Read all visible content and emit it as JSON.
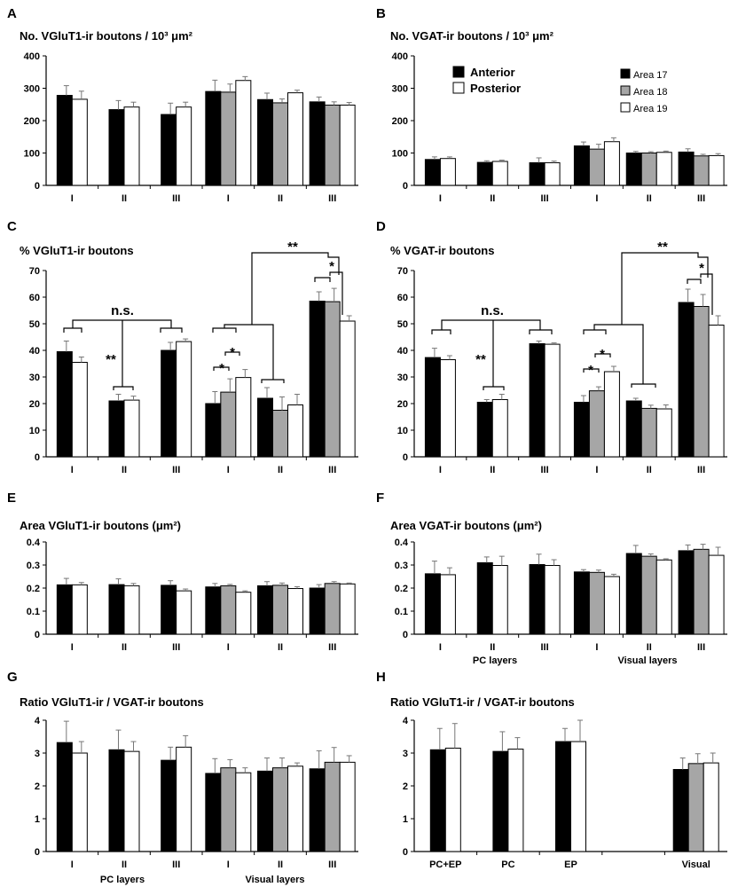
{
  "colors": {
    "anterior": "#000000",
    "posterior": "#ffffff",
    "area17": "#000000",
    "area18": "#a6a6a6",
    "area19": "#ffffff",
    "axis": "#000000"
  },
  "legend": {
    "phase": {
      "anterior": "Anterior",
      "posterior": "Posterior"
    },
    "areas": {
      "area17": "Area 17",
      "area18": "Area 18",
      "area19": "Area 19"
    }
  },
  "group_labels": {
    "pc": "PC layers",
    "visual": "Visual layers"
  },
  "chart_data": [
    {
      "id": "A",
      "letter": "A",
      "type": "bar",
      "title": "No. VGluT1-ir boutons / 10³ μm²",
      "ylim": [
        0,
        400
      ],
      "yticks": [
        "0",
        "100",
        "200",
        "300",
        "400"
      ],
      "categories": [
        "I",
        "II",
        "III",
        "I",
        "II",
        "III"
      ],
      "groups": [
        {
          "series": [
            "Anterior",
            "Posterior"
          ],
          "values": [
            278,
            266
          ],
          "errors": [
            30,
            25
          ]
        },
        {
          "series": [
            "Anterior",
            "Posterior"
          ],
          "values": [
            234,
            242
          ],
          "errors": [
            28,
            15
          ]
        },
        {
          "series": [
            "Anterior",
            "Posterior"
          ],
          "values": [
            219,
            242
          ],
          "errors": [
            35,
            15
          ]
        },
        {
          "series": [
            "Area 17",
            "Area 18",
            "Area 19"
          ],
          "values": [
            290,
            288,
            324
          ],
          "errors": [
            35,
            25,
            12
          ]
        },
        {
          "series": [
            "Area 17",
            "Area 18",
            "Area 19"
          ],
          "values": [
            265,
            255,
            286
          ],
          "errors": [
            20,
            12,
            8
          ]
        },
        {
          "series": [
            "Area 17",
            "Area 18",
            "Area 19"
          ],
          "values": [
            258,
            248,
            248
          ],
          "errors": [
            15,
            10,
            8
          ]
        }
      ]
    },
    {
      "id": "B",
      "letter": "B",
      "type": "bar",
      "title": "No. VGAT-ir boutons / 10³ μm²",
      "ylim": [
        0,
        400
      ],
      "yticks": [
        "0",
        "100",
        "200",
        "300",
        "400"
      ],
      "categories": [
        "I",
        "II",
        "III",
        "I",
        "II",
        "III"
      ],
      "groups": [
        {
          "series": [
            "Anterior",
            "Posterior"
          ],
          "values": [
            80,
            83
          ],
          "errors": [
            8,
            5
          ]
        },
        {
          "series": [
            "Anterior",
            "Posterior"
          ],
          "values": [
            71,
            74
          ],
          "errors": [
            5,
            4
          ]
        },
        {
          "series": [
            "Anterior",
            "Posterior"
          ],
          "values": [
            70,
            70
          ],
          "errors": [
            15,
            5
          ]
        },
        {
          "series": [
            "Area 17",
            "Area 18",
            "Area 19"
          ],
          "values": [
            122,
            112,
            135
          ],
          "errors": [
            12,
            15,
            12
          ]
        },
        {
          "series": [
            "Area 17",
            "Area 18",
            "Area 19"
          ],
          "values": [
            100,
            100,
            102
          ],
          "errors": [
            5,
            4,
            4
          ]
        },
        {
          "series": [
            "Area 17",
            "Area 18",
            "Area 19"
          ],
          "values": [
            103,
            91,
            92
          ],
          "errors": [
            10,
            5,
            6
          ]
        }
      ]
    },
    {
      "id": "C",
      "letter": "C",
      "type": "bar",
      "title": "% VGluT1-ir boutons",
      "ylim": [
        0,
        70
      ],
      "yticks": [
        "0",
        "10",
        "20",
        "30",
        "40",
        "50",
        "60",
        "70"
      ],
      "categories": [
        "I",
        "II",
        "III",
        "I",
        "II",
        "III"
      ],
      "groups": [
        {
          "series": [
            "Anterior",
            "Posterior"
          ],
          "values": [
            39.5,
            35.5
          ],
          "errors": [
            4,
            2
          ]
        },
        {
          "series": [
            "Anterior",
            "Posterior"
          ],
          "values": [
            21,
            21.3
          ],
          "errors": [
            2.5,
            1.5
          ]
        },
        {
          "series": [
            "Anterior",
            "Posterior"
          ],
          "values": [
            40,
            43.3
          ],
          "errors": [
            3,
            1
          ]
        },
        {
          "series": [
            "Area 17",
            "Area 18",
            "Area 19"
          ],
          "values": [
            20,
            24.3,
            29.8
          ],
          "errors": [
            4.5,
            5,
            3
          ]
        },
        {
          "series": [
            "Area 17",
            "Area 18",
            "Area 19"
          ],
          "values": [
            22,
            17.5,
            19.5
          ],
          "errors": [
            4,
            5,
            4
          ]
        },
        {
          "series": [
            "Area 17",
            "Area 18",
            "Area 19"
          ],
          "values": [
            58.5,
            58.3,
            51
          ],
          "errors": [
            3.5,
            5,
            2
          ]
        }
      ],
      "annotations": {
        "ns": "n.s.",
        "sig2": "**",
        "sig1": "*"
      }
    },
    {
      "id": "D",
      "letter": "D",
      "type": "bar",
      "title": "% VGAT-ir boutons",
      "ylim": [
        0,
        70
      ],
      "yticks": [
        "0",
        "10",
        "20",
        "30",
        "40",
        "50",
        "60",
        "70"
      ],
      "categories": [
        "I",
        "II",
        "III",
        "I",
        "II",
        "III"
      ],
      "groups": [
        {
          "series": [
            "Anterior",
            "Posterior"
          ],
          "values": [
            37.3,
            36.5
          ],
          "errors": [
            3.5,
            1.5
          ]
        },
        {
          "series": [
            "Anterior",
            "Posterior"
          ],
          "values": [
            20.5,
            21.5
          ],
          "errors": [
            1,
            2
          ]
        },
        {
          "series": [
            "Anterior",
            "Posterior"
          ],
          "values": [
            42.5,
            42.3
          ],
          "errors": [
            1,
            0.5
          ]
        },
        {
          "series": [
            "Area 17",
            "Area 18",
            "Area 19"
          ],
          "values": [
            20.5,
            24.8,
            32
          ],
          "errors": [
            2.5,
            1.5,
            2
          ]
        },
        {
          "series": [
            "Area 17",
            "Area 18",
            "Area 19"
          ],
          "values": [
            21,
            18.2,
            18
          ],
          "errors": [
            1,
            1.2,
            1.5
          ]
        },
        {
          "series": [
            "Area 17",
            "Area 18",
            "Area 19"
          ],
          "values": [
            58,
            56.5,
            49.5
          ],
          "errors": [
            5,
            4.5,
            3.5
          ]
        }
      ],
      "annotations": {
        "ns": "n.s.",
        "sig2": "**",
        "sig1": "*"
      }
    },
    {
      "id": "E",
      "letter": "E",
      "type": "bar",
      "title": "Area VGluT1-ir boutons (μm²)",
      "ylim": [
        0,
        0.4
      ],
      "yticks": [
        "0",
        "0.1",
        "0.2",
        "0.3",
        "0.4"
      ],
      "categories": [
        "I",
        "II",
        "III",
        "I",
        "II",
        "III"
      ],
      "groups": [
        {
          "series": [
            "Anterior",
            "Posterior"
          ],
          "values": [
            0.214,
            0.214
          ],
          "errors": [
            0.028,
            0.01
          ]
        },
        {
          "series": [
            "Anterior",
            "Posterior"
          ],
          "values": [
            0.215,
            0.21
          ],
          "errors": [
            0.025,
            0.01
          ]
        },
        {
          "series": [
            "Anterior",
            "Posterior"
          ],
          "values": [
            0.212,
            0.188
          ],
          "errors": [
            0.02,
            0.008
          ]
        },
        {
          "series": [
            "Area 17",
            "Area 18",
            "Area 19"
          ],
          "values": [
            0.205,
            0.21,
            0.182
          ],
          "errors": [
            0.015,
            0.006,
            0.006
          ]
        },
        {
          "series": [
            "Area 17",
            "Area 18",
            "Area 19"
          ],
          "values": [
            0.21,
            0.212,
            0.198
          ],
          "errors": [
            0.018,
            0.01,
            0.008
          ]
        },
        {
          "series": [
            "Area 17",
            "Area 18",
            "Area 19"
          ],
          "values": [
            0.2,
            0.22,
            0.218
          ],
          "errors": [
            0.015,
            0.008,
            0.004
          ]
        }
      ]
    },
    {
      "id": "F",
      "letter": "F",
      "type": "bar",
      "title": "Area VGAT-ir boutons (μm²)",
      "ylim": [
        0,
        0.4
      ],
      "yticks": [
        "0",
        "0.1",
        "0.2",
        "0.3",
        "0.4"
      ],
      "categories": [
        "I",
        "II",
        "III",
        "I",
        "II",
        "III"
      ],
      "group_axis": {
        "left": "PC layers",
        "right": "Visual layers"
      },
      "groups": [
        {
          "series": [
            "Anterior",
            "Posterior"
          ],
          "values": [
            0.262,
            0.258
          ],
          "errors": [
            0.055,
            0.03
          ]
        },
        {
          "series": [
            "Anterior",
            "Posterior"
          ],
          "values": [
            0.31,
            0.298
          ],
          "errors": [
            0.025,
            0.04
          ]
        },
        {
          "series": [
            "Anterior",
            "Posterior"
          ],
          "values": [
            0.302,
            0.298
          ],
          "errors": [
            0.045,
            0.025
          ]
        },
        {
          "series": [
            "Area 17",
            "Area 18",
            "Area 19"
          ],
          "values": [
            0.27,
            0.268,
            0.25
          ],
          "errors": [
            0.01,
            0.01,
            0.01
          ]
        },
        {
          "series": [
            "Area 17",
            "Area 18",
            "Area 19"
          ],
          "values": [
            0.35,
            0.338,
            0.322
          ],
          "errors": [
            0.035,
            0.01,
            0.005
          ]
        },
        {
          "series": [
            "Area 17",
            "Area 18",
            "Area 19"
          ],
          "values": [
            0.362,
            0.368,
            0.342
          ],
          "errors": [
            0.025,
            0.022,
            0.035
          ]
        }
      ]
    },
    {
      "id": "G",
      "letter": "G",
      "type": "bar",
      "title": "Ratio VGluT1-ir / VGAT-ir boutons",
      "ylim": [
        0,
        4
      ],
      "yticks": [
        "0",
        "1",
        "2",
        "3",
        "4"
      ],
      "categories": [
        "I",
        "II",
        "III",
        "I",
        "II",
        "III"
      ],
      "group_axis": {
        "left": "PC layers",
        "right": "Visual layers"
      },
      "groups": [
        {
          "series": [
            "Anterior",
            "Posterior"
          ],
          "values": [
            3.32,
            3.0
          ],
          "errors": [
            0.65,
            0.35
          ]
        },
        {
          "series": [
            "Anterior",
            "Posterior"
          ],
          "values": [
            3.1,
            3.05
          ],
          "errors": [
            0.6,
            0.3
          ]
        },
        {
          "series": [
            "Anterior",
            "Posterior"
          ],
          "values": [
            2.78,
            3.18
          ],
          "errors": [
            0.4,
            0.35
          ]
        },
        {
          "series": [
            "Area 17",
            "Area 18",
            "Area 19"
          ],
          "values": [
            2.38,
            2.55,
            2.4
          ],
          "errors": [
            0.45,
            0.25,
            0.15
          ]
        },
        {
          "series": [
            "Area 17",
            "Area 18",
            "Area 19"
          ],
          "values": [
            2.45,
            2.55,
            2.6
          ],
          "errors": [
            0.4,
            0.3,
            0.1
          ]
        },
        {
          "series": [
            "Area 17",
            "Area 18",
            "Area 19"
          ],
          "values": [
            2.52,
            2.72,
            2.72
          ],
          "errors": [
            0.55,
            0.45,
            0.2
          ]
        }
      ]
    },
    {
      "id": "H",
      "letter": "H",
      "type": "bar",
      "title": "Ratio VGluT1-ir / VGAT-ir boutons",
      "ylim": [
        0,
        4
      ],
      "yticks": [
        "0",
        "1",
        "2",
        "3",
        "4"
      ],
      "categories": [
        "PC+EP",
        "PC",
        "EP",
        "",
        "Visual"
      ],
      "groups": [
        {
          "series": [
            "Anterior",
            "Posterior"
          ],
          "values": [
            3.1,
            3.15
          ],
          "errors": [
            0.65,
            0.75
          ]
        },
        {
          "series": [
            "Anterior",
            "Posterior"
          ],
          "values": [
            3.05,
            3.12
          ],
          "errors": [
            0.6,
            0.35
          ]
        },
        {
          "series": [
            "Anterior",
            "Posterior"
          ],
          "values": [
            3.35,
            3.35
          ],
          "errors": [
            0.4,
            0.65
          ]
        },
        {
          "series": [],
          "values": [],
          "errors": []
        },
        {
          "series": [
            "Area 17",
            "Area 18",
            "Area 19"
          ],
          "values": [
            2.5,
            2.68,
            2.7
          ],
          "errors": [
            0.35,
            0.3,
            0.3
          ]
        }
      ]
    }
  ]
}
